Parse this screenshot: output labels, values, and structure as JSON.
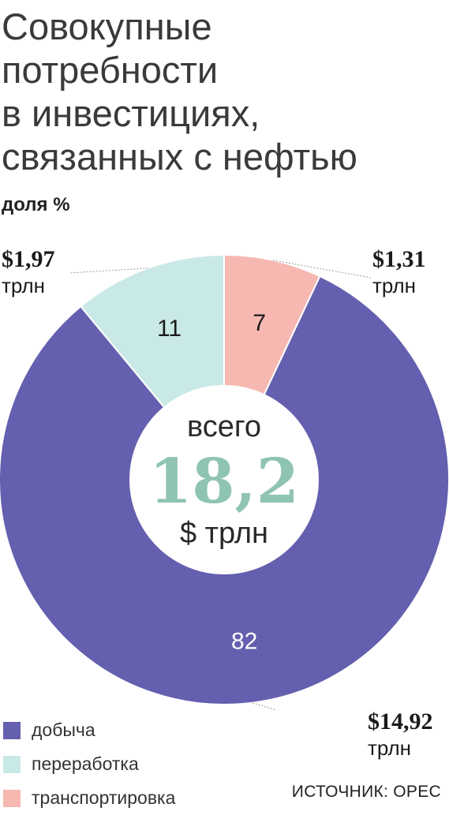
{
  "title_lines": [
    "Совокупные",
    "потребности",
    "в инвестициях,",
    "связанных с нефтью"
  ],
  "subtitle": "доля %",
  "center": {
    "label": "всего",
    "value": "18,2",
    "unit": "$ трлн"
  },
  "callouts": {
    "refining": {
      "amount": "$1,97",
      "unit": "трлн"
    },
    "transport": {
      "amount": "$1,31",
      "unit": "трлн"
    },
    "production": {
      "amount": "$14,92",
      "unit": "трлн"
    }
  },
  "legend": [
    "добыча",
    "переработка",
    "транспортировка"
  ],
  "source": "ИСТОЧНИК: OPEC",
  "colors": {
    "production": "#645fae",
    "refining": "#c9e9e6",
    "transport": "#f6b8b1",
    "center_value": "#8fc3b3"
  },
  "chart_data": {
    "type": "pie",
    "title": "Совокупные потребности в инвестициях, связанных с нефтью",
    "subtitle": "доля %",
    "order": "clockwise from top",
    "slices": [
      {
        "label": "транспортировка",
        "value": 7,
        "amount": "$1,31 трлн",
        "color": "#f6b8b1"
      },
      {
        "label": "добыча",
        "value": 82,
        "amount": "$14,92 трлн",
        "color": "#645fae"
      },
      {
        "label": "переработка",
        "value": 11,
        "amount": "$1,97 трлн",
        "color": "#c9e9e6"
      }
    ],
    "total": "18,2",
    "total_unit": "$ трлн"
  }
}
